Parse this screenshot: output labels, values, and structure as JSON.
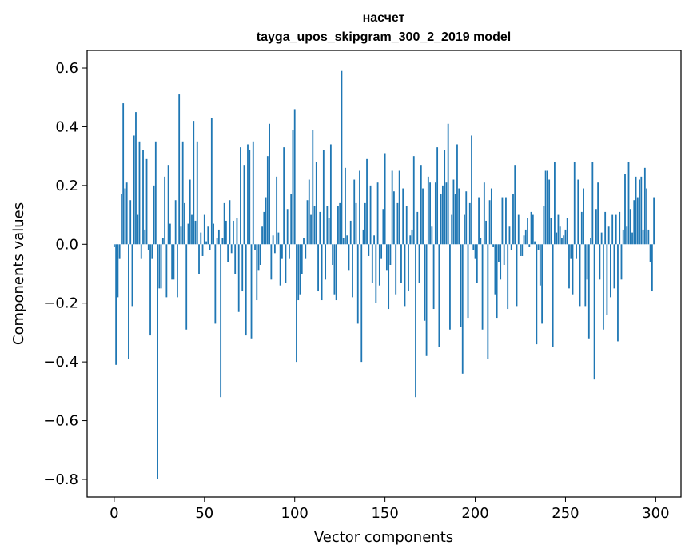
{
  "chart_data": {
    "type": "bar",
    "title": "насчет",
    "subtitle": "tayga_upos_skipgram_300_2_2019 model",
    "xlabel": "Vector components",
    "ylabel": "Components values",
    "xlim": [
      -15,
      314
    ],
    "ylim": [
      -0.86,
      0.66
    ],
    "xticks": [
      0,
      50,
      100,
      150,
      200,
      250,
      300
    ],
    "xtick_labels": [
      "0",
      "50",
      "100",
      "150",
      "200",
      "250",
      "300"
    ],
    "yticks": [
      -0.8,
      -0.6,
      -0.4,
      -0.2,
      0.0,
      0.2,
      0.4,
      0.6
    ],
    "ytick_labels": [
      "−0.8",
      "−0.6",
      "−0.4",
      "−0.2",
      "0.0",
      "0.2",
      "0.4",
      "0.6"
    ],
    "bar_color": "#1f77b4",
    "grid": false,
    "values": [
      -0.01,
      -0.41,
      -0.18,
      -0.05,
      0.17,
      0.48,
      0.19,
      0.21,
      -0.39,
      0.15,
      -0.21,
      0.37,
      0.45,
      0.1,
      0.35,
      -0.05,
      0.32,
      0.05,
      0.29,
      -0.02,
      -0.31,
      -0.05,
      0.2,
      0.35,
      -0.8,
      -0.15,
      -0.15,
      0.02,
      0.23,
      -0.18,
      0.27,
      0.07,
      -0.12,
      -0.12,
      0.15,
      -0.18,
      0.51,
      0.06,
      0.35,
      0.14,
      -0.29,
      0.07,
      0.22,
      0.1,
      0.42,
      0.08,
      0.35,
      -0.1,
      0.04,
      -0.04,
      0.1,
      0.01,
      0.06,
      -0.02,
      0.43,
      0.07,
      -0.27,
      0.02,
      0.05,
      -0.52,
      0.02,
      0.14,
      0.08,
      -0.06,
      0.15,
      -0.03,
      0.08,
      -0.1,
      0.09,
      -0.23,
      0.33,
      -0.16,
      0.27,
      -0.31,
      0.34,
      0.32,
      -0.32,
      0.35,
      -0.02,
      -0.19,
      -0.09,
      -0.07,
      0.06,
      0.11,
      0.16,
      0.3,
      0.41,
      -0.12,
      0.03,
      -0.03,
      0.23,
      0.04,
      -0.14,
      -0.05,
      0.33,
      -0.13,
      0.12,
      -0.05,
      0.17,
      0.39,
      0.46,
      -0.4,
      -0.19,
      -0.17,
      -0.1,
      0.02,
      -0.05,
      0.15,
      0.22,
      0.1,
      0.39,
      0.13,
      0.28,
      -0.16,
      0.11,
      -0.19,
      0.32,
      -0.12,
      0.13,
      0.09,
      0.34,
      -0.07,
      -0.17,
      -0.19,
      0.13,
      0.14,
      0.59,
      0.02,
      0.26,
      0.03,
      -0.09,
      0.08,
      -0.18,
      0.22,
      0.14,
      -0.27,
      0.25,
      -0.4,
      0.05,
      0.14,
      0.29,
      -0.04,
      0.2,
      -0.13,
      0.03,
      -0.2,
      0.21,
      -0.14,
      -0.05,
      0.12,
      0.31,
      -0.09,
      -0.22,
      -0.07,
      0.25,
      0.18,
      -0.17,
      0.14,
      0.25,
      -0.13,
      0.19,
      -0.21,
      0.13,
      -0.16,
      0.03,
      0.05,
      0.3,
      -0.52,
      0.11,
      -0.13,
      0.27,
      0.19,
      -0.26,
      -0.38,
      0.23,
      0.21,
      0.06,
      -0.22,
      0.21,
      0.33,
      -0.35,
      0.17,
      0.2,
      0.32,
      0.21,
      0.41,
      -0.29,
      0.1,
      0.22,
      0.17,
      0.34,
      0.19,
      -0.28,
      -0.44,
      0.1,
      0.18,
      -0.25,
      0.14,
      0.37,
      -0.02,
      -0.05,
      -0.13,
      0.16,
      0.02,
      -0.29,
      0.21,
      0.08,
      -0.39,
      0.15,
      0.19,
      -0.01,
      -0.17,
      -0.25,
      -0.06,
      -0.12,
      0.16,
      -0.07,
      0.16,
      -0.22,
      0.06,
      -0.02,
      0.17,
      0.27,
      -0.21,
      0.1,
      -0.04,
      -0.04,
      0.03,
      0.05,
      0.09,
      -0.01,
      0.11,
      0.1,
      0.01,
      -0.34,
      -0.02,
      -0.14,
      -0.27,
      0.13,
      0.25,
      0.25,
      0.22,
      0.09,
      -0.35,
      0.28,
      0.04,
      0.1,
      0.06,
      0.02,
      0.03,
      0.05,
      0.09,
      -0.15,
      -0.05,
      -0.17,
      0.28,
      -0.05,
      0.22,
      -0.21,
      0.11,
      0.19,
      -0.21,
      -0.12,
      -0.32,
      0.02,
      0.28,
      -0.46,
      0.12,
      0.21,
      -0.12,
      0.04,
      -0.29,
      0.11,
      -0.24,
      0.06,
      -0.18,
      0.1,
      -0.15,
      0.1,
      -0.33,
      0.11,
      -0.12,
      0.05,
      0.24,
      0.06,
      0.28,
      0.12,
      0.04,
      0.15,
      0.23,
      0.16,
      0.22,
      0.23,
      0.05,
      0.26,
      0.19,
      0.05,
      -0.06,
      -0.16,
      0.16
    ]
  }
}
